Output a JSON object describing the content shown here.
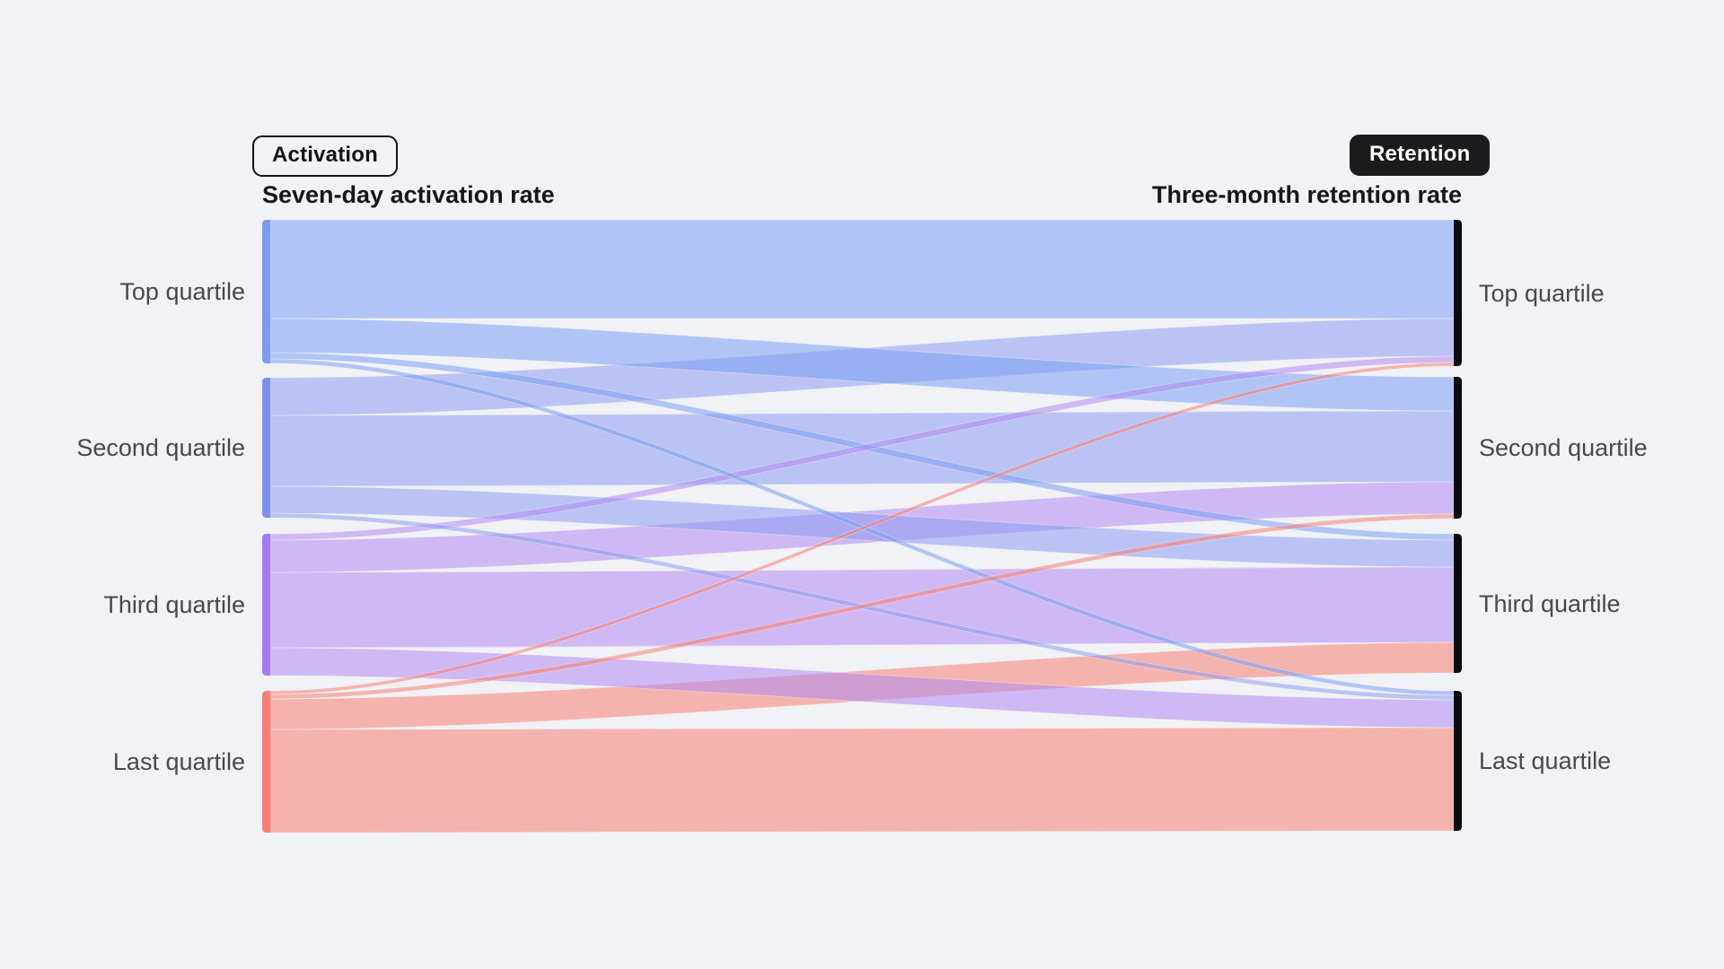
{
  "header": {
    "activation_badge": "Activation",
    "retention_badge": "Retention",
    "left_title": "Seven-day activation rate",
    "right_title": "Three-month retention rate"
  },
  "chart_data": {
    "type": "sankey",
    "title": "",
    "left_axis": {
      "badge": "Activation",
      "label": "Seven-day activation rate"
    },
    "right_axis": {
      "badge": "Retention",
      "label": "Three-month retention rate"
    },
    "categories": [
      "Top quartile",
      "Second quartile",
      "Third quartile",
      "Last quartile"
    ],
    "flows": [
      {
        "from": "Top quartile",
        "to": "Top quartile",
        "weight": 110
      },
      {
        "from": "Top quartile",
        "to": "Second quartile",
        "weight": 38
      },
      {
        "from": "Top quartile",
        "to": "Third quartile",
        "weight": 7
      },
      {
        "from": "Top quartile",
        "to": "Last quartile",
        "weight": 5
      },
      {
        "from": "Second quartile",
        "to": "Top quartile",
        "weight": 42
      },
      {
        "from": "Second quartile",
        "to": "Second quartile",
        "weight": 79
      },
      {
        "from": "Second quartile",
        "to": "Third quartile",
        "weight": 30
      },
      {
        "from": "Second quartile",
        "to": "Last quartile",
        "weight": 5
      },
      {
        "from": "Third quartile",
        "to": "Top quartile",
        "weight": 7
      },
      {
        "from": "Third quartile",
        "to": "Second quartile",
        "weight": 36
      },
      {
        "from": "Third quartile",
        "to": "Third quartile",
        "weight": 84
      },
      {
        "from": "Third quartile",
        "to": "Last quartile",
        "weight": 31
      },
      {
        "from": "Last quartile",
        "to": "Top quartile",
        "weight": 4
      },
      {
        "from": "Last quartile",
        "to": "Second quartile",
        "weight": 5
      },
      {
        "from": "Last quartile",
        "to": "Third quartile",
        "weight": 34
      },
      {
        "from": "Last quartile",
        "to": "Last quartile",
        "weight": 115
      }
    ],
    "colors": {
      "background": "#f1f2f6",
      "flow_by_source": [
        "#7aa0f4",
        "#8c9df0",
        "#b18af2",
        "#f87f72"
      ],
      "left_node_by_source": [
        "#7d99f3",
        "#7d8ff0",
        "#a07bf3",
        "#fa7c76"
      ],
      "right_node": "#0a0a0c",
      "badge_outline_color": "#141416",
      "badge_solid_bg": "#1c1c1e",
      "label_color": "#48484c"
    },
    "legend_position": "none",
    "grid": false
  }
}
